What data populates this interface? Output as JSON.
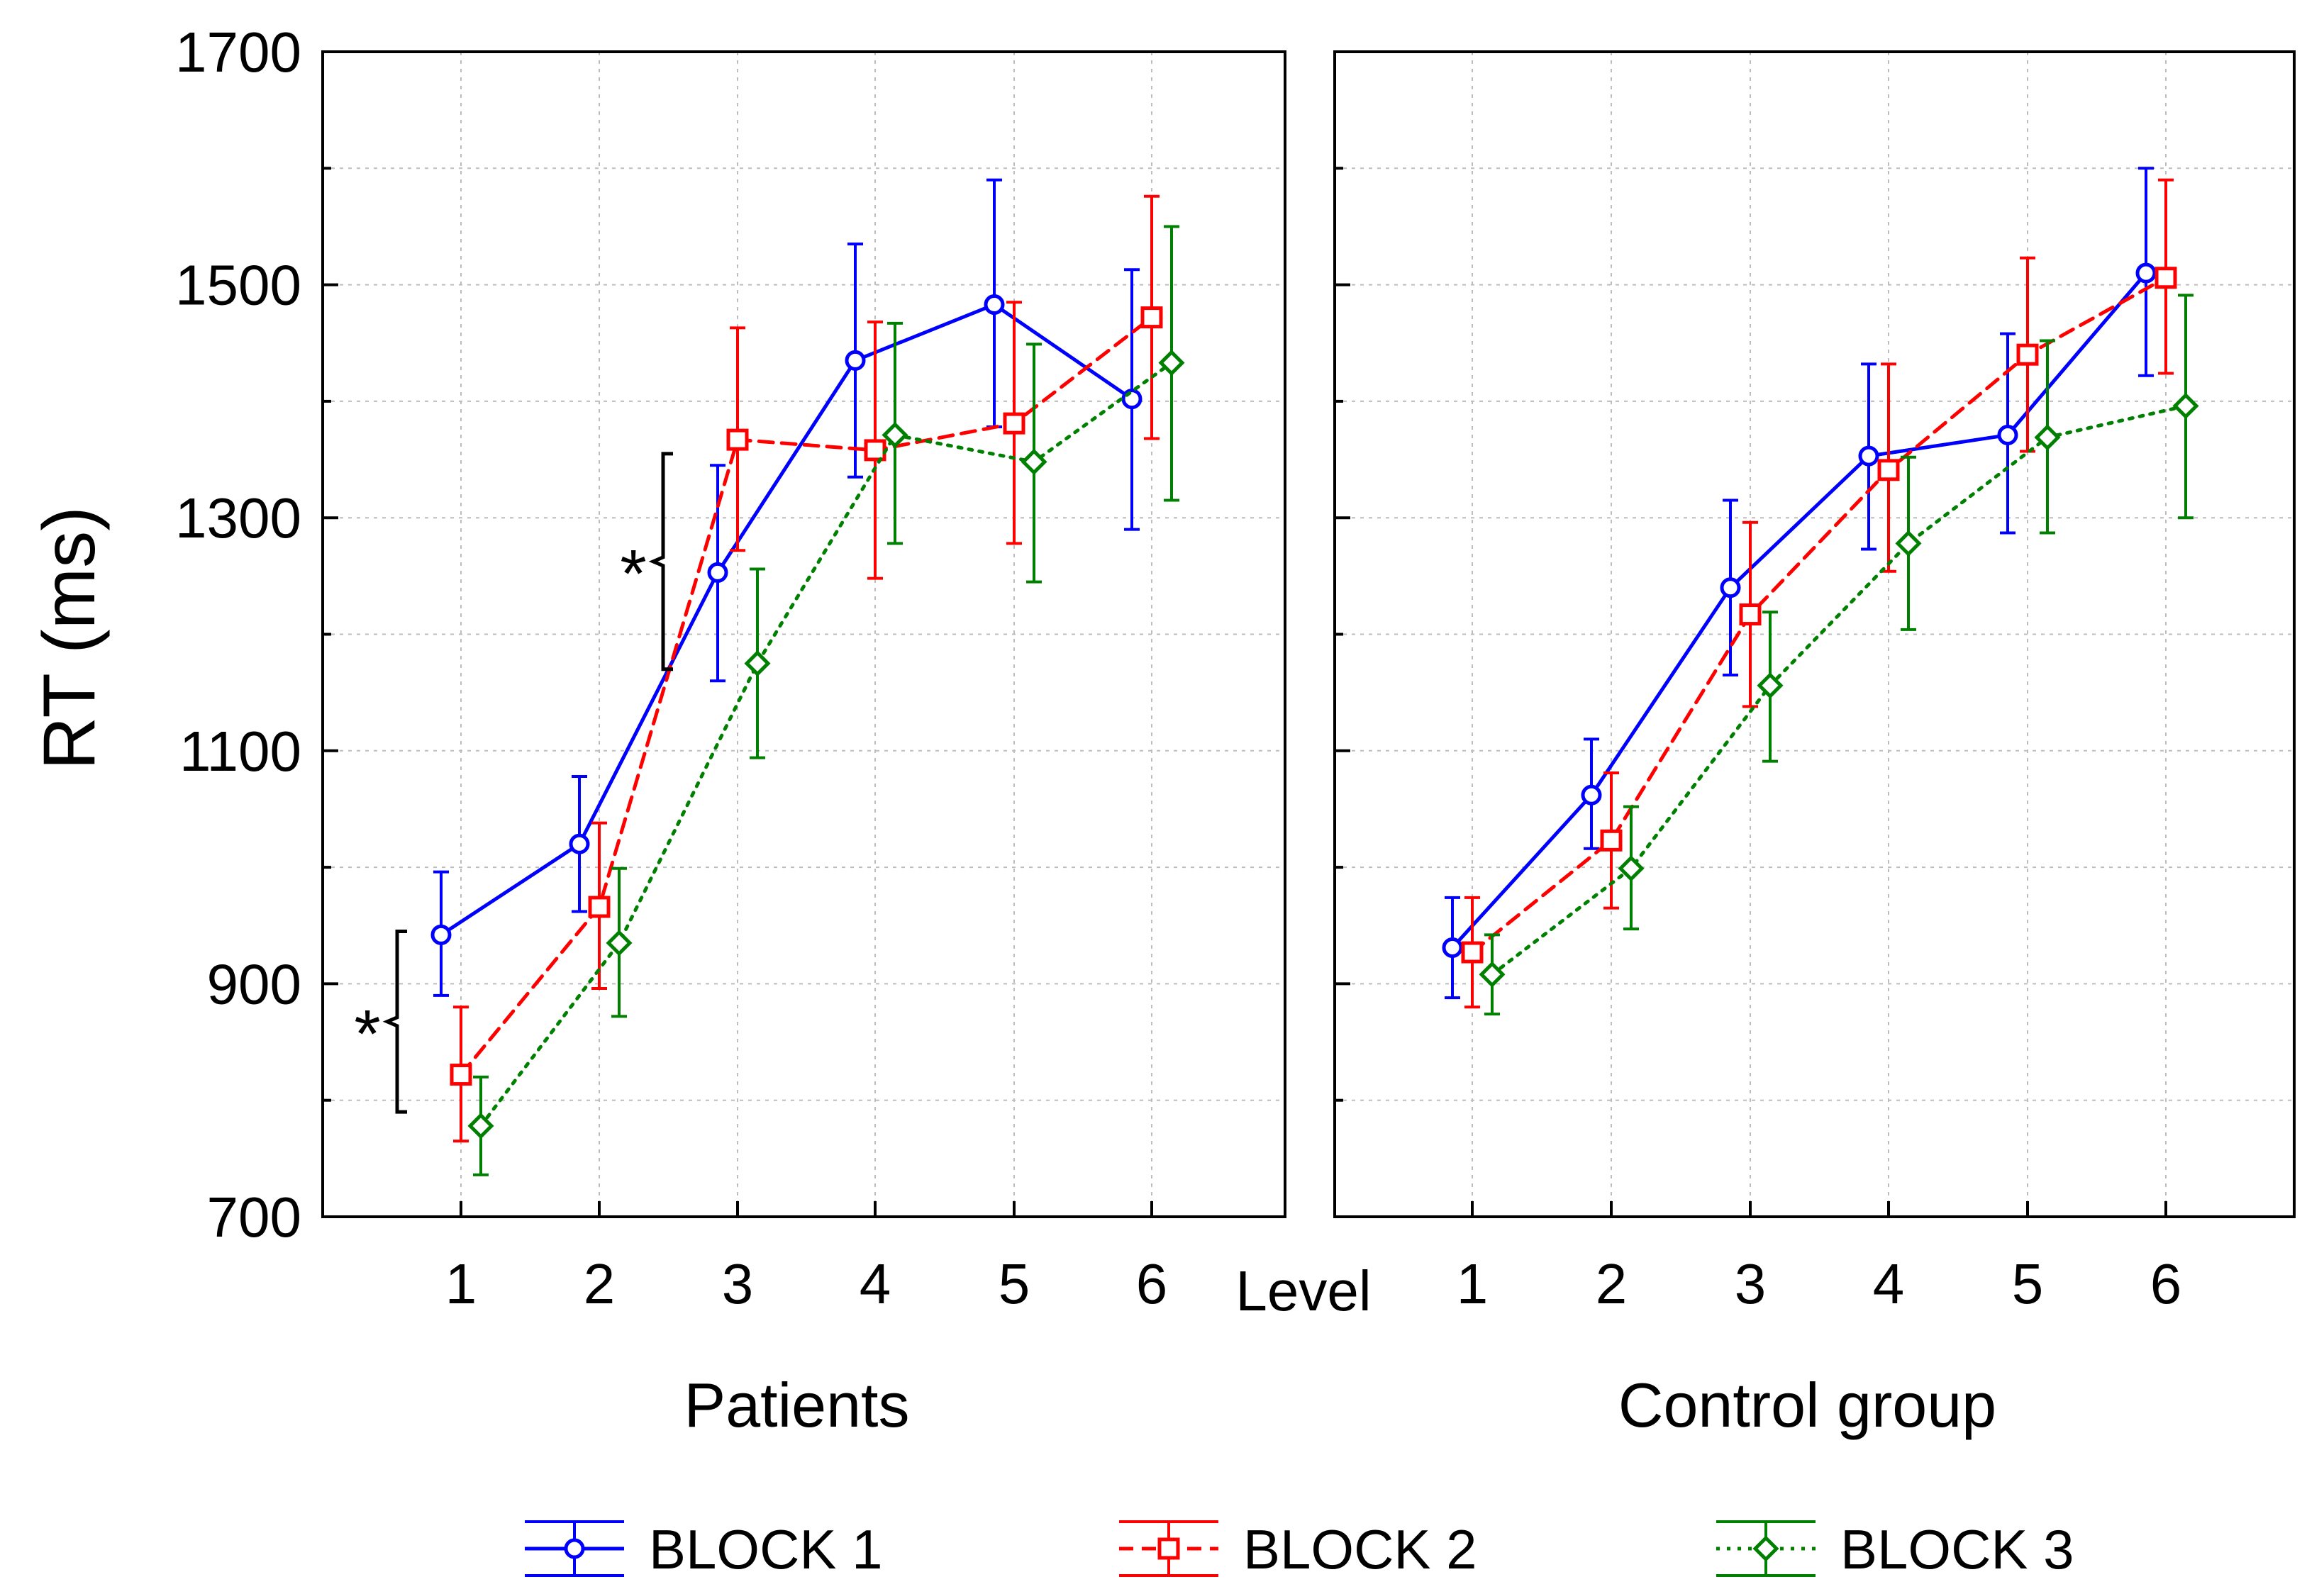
{
  "chart_data": {
    "type": "line",
    "ylabel": "RT (ms)",
    "xlabel": "Level",
    "ylim": [
      700,
      1700
    ],
    "yticks": [
      700,
      900,
      1100,
      1300,
      1500,
      1700
    ],
    "categories": [
      "1",
      "2",
      "3",
      "4",
      "5",
      "6"
    ],
    "grid": true,
    "legend_position": "bottom",
    "panels": [
      {
        "title": "Patients",
        "series": [
          {
            "name": "BLOCK 1",
            "color": "#0000ff",
            "style": "solid",
            "marker": "circle",
            "values": [
              942,
              1020,
              1253,
              1435,
              1483,
              1402
            ],
            "err_low": [
              890,
              962,
              1160,
              1335,
              1378,
              1290
            ],
            "err_high": [
              996,
              1078,
              1345,
              1535,
              1590,
              1513
            ]
          },
          {
            "name": "BLOCK 2",
            "color": "#ff0000",
            "style": "dashed",
            "marker": "square",
            "values": [
              822,
              966,
              1367,
              1358,
              1381,
              1472
            ],
            "err_low": [
              765,
              896,
              1272,
              1248,
              1278,
              1368
            ],
            "err_high": [
              880,
              1038,
              1463,
              1468,
              1485,
              1576
            ]
          },
          {
            "name": "BLOCK 3",
            "color": "#008000",
            "style": "dotted",
            "marker": "diamond",
            "values": [
              778,
              935,
              1175,
              1371,
              1348,
              1433
            ],
            "err_low": [
              736,
              872,
              1094,
              1278,
              1245,
              1315
            ],
            "err_high": [
              820,
              999,
              1256,
              1467,
              1449,
              1550
            ]
          }
        ],
        "annotations": [
          {
            "text": "*",
            "between_series": [
              "BLOCK 1",
              "BLOCK 2"
            ],
            "level": "1",
            "range": [
              790,
              945
            ]
          },
          {
            "text": "*",
            "between_series": [
              "BLOCK 1",
              "BLOCK 2"
            ],
            "level": "3",
            "range": [
              1170,
              1355
            ]
          }
        ]
      },
      {
        "title": "Control group",
        "series": [
          {
            "name": "BLOCK 1",
            "color": "#0000ff",
            "style": "solid",
            "marker": "circle",
            "values": [
              931,
              1062,
              1240,
              1353,
              1371,
              1510
            ],
            "err_low": [
              888,
              1016,
              1165,
              1273,
              1287,
              1422
            ],
            "err_high": [
              974,
              1110,
              1315,
              1432,
              1458,
              1600
            ]
          },
          {
            "name": "BLOCK 2",
            "color": "#ff0000",
            "style": "dashed",
            "marker": "square",
            "values": [
              927,
              1023,
              1217,
              1341,
              1440,
              1506
            ],
            "err_low": [
              880,
              965,
              1138,
              1254,
              1357,
              1424
            ],
            "err_high": [
              974,
              1081,
              1296,
              1432,
              1523,
              1590
            ]
          },
          {
            "name": "BLOCK 3",
            "color": "#008000",
            "style": "dotted",
            "marker": "diamond",
            "values": [
              908,
              999,
              1156,
              1278,
              1369,
              1396
            ],
            "err_low": [
              874,
              947,
              1091,
              1204,
              1287,
              1300
            ],
            "err_high": [
              942,
              1052,
              1219,
              1352,
              1452,
              1491
            ]
          }
        ],
        "annotations": []
      }
    ],
    "legend": [
      {
        "label": "BLOCK 1",
        "color": "#0000ff",
        "style": "solid",
        "marker": "circle"
      },
      {
        "label": "BLOCK 2",
        "color": "#ff0000",
        "style": "dashed",
        "marker": "square"
      },
      {
        "label": "BLOCK 3",
        "color": "#008000",
        "style": "dotted",
        "marker": "diamond"
      }
    ]
  }
}
